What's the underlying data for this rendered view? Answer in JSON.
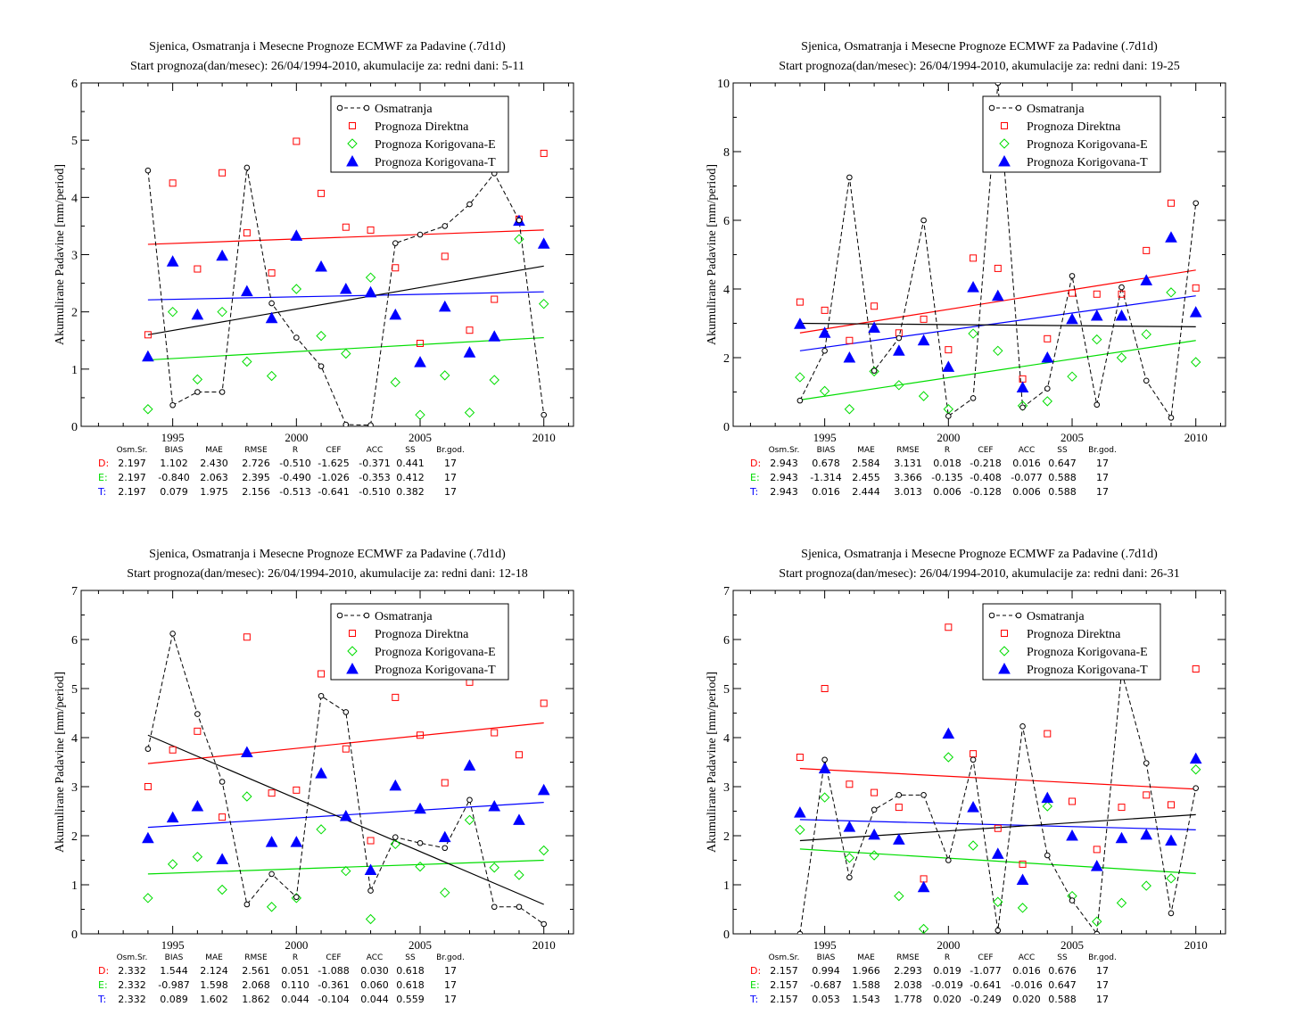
{
  "legend": {
    "obs": "Osmatranja",
    "direct": "Prognoza Direktna",
    "corrE": "Prognoza Korigovana-E",
    "corrT": "Prognoza Korigovana-T"
  },
  "stats_headers": [
    "Osm.Sr.",
    "BIAS",
    "MAE",
    "RMSE",
    "R",
    "CEF",
    "ACC",
    "SS",
    "Br.god."
  ],
  "colors": {
    "obs": "#000000",
    "direct": "#ff0000",
    "corrE": "#00dd00",
    "corrT": "#0000ff"
  },
  "chart_data": [
    {
      "type": "scatter",
      "title": "Sjenica, Osmatranja i Mesecne Prognoze ECMWF za Padavine (.7d1d)",
      "subtitle": "Start prognoza(dan/mesec): 26/04/1994-2010, akumulacije za: redni dani: 5-11",
      "ylabel": "Akumulirane Padavine [mm/period]",
      "xlim": [
        1991.3,
        2011.2
      ],
      "ylim": [
        0,
        6
      ],
      "xticks": [
        1995,
        2000,
        2005,
        2010
      ],
      "yticks": [
        0,
        1,
        2,
        3,
        4,
        5,
        6
      ],
      "x": [
        1994,
        1995,
        1996,
        1997,
        1998,
        1999,
        2000,
        2001,
        2002,
        2003,
        2004,
        2005,
        2006,
        2007,
        2008,
        2009,
        2010
      ],
      "obs": [
        4.47,
        0.37,
        0.6,
        0.6,
        4.52,
        2.15,
        1.55,
        1.05,
        0.03,
        0.02,
        3.2,
        3.35,
        3.5,
        3.88,
        4.42,
        3.6,
        0.2
      ],
      "direct": [
        1.6,
        4.25,
        2.75,
        4.43,
        3.38,
        2.68,
        4.98,
        4.07,
        3.48,
        3.43,
        2.77,
        1.45,
        2.97,
        1.68,
        2.22,
        3.62,
        4.77
      ],
      "corrE": [
        0.3,
        2.0,
        0.82,
        2.0,
        1.13,
        0.88,
        2.4,
        1.58,
        1.27,
        2.6,
        0.77,
        0.2,
        0.89,
        0.24,
        0.81,
        3.27,
        2.14
      ],
      "corrT": [
        1.22,
        2.88,
        1.95,
        2.98,
        2.36,
        1.89,
        3.33,
        2.79,
        2.4,
        2.34,
        1.95,
        1.12,
        2.09,
        1.29,
        1.57,
        3.59,
        3.19
      ],
      "trend": {
        "obs": [
          1.6,
          2.8
        ],
        "direct": [
          3.18,
          3.43
        ],
        "corrE": [
          1.16,
          1.55
        ],
        "corrT": [
          2.21,
          2.35
        ]
      },
      "stats": [
        {
          "label": "D:",
          "values": [
            "2.197",
            "1.102",
            "2.430",
            "2.726",
            "-0.510",
            "-1.625",
            "-0.371",
            "0.441",
            "17"
          ]
        },
        {
          "label": "E:",
          "values": [
            "2.197",
            "-0.840",
            "2.063",
            "2.395",
            "-0.490",
            "-1.026",
            "-0.353",
            "0.412",
            "17"
          ]
        },
        {
          "label": "T:",
          "values": [
            "2.197",
            "0.079",
            "1.975",
            "2.156",
            "-0.513",
            "-0.641",
            "-0.510",
            "0.382",
            "17"
          ]
        }
      ]
    },
    {
      "type": "scatter",
      "title": "Sjenica, Osmatranja i Mesecne Prognoze ECMWF za Padavine (.7d1d)",
      "subtitle": "Start prognoza(dan/mesec): 26/04/1994-2010, akumulacije za: redni dani: 19-25",
      "ylabel": "Akumulirane Padavine [mm/period]",
      "xlim": [
        1991.3,
        2011.2
      ],
      "ylim": [
        0,
        10
      ],
      "xticks": [
        1995,
        2000,
        2005,
        2010
      ],
      "yticks": [
        0,
        2,
        4,
        6,
        8,
        10
      ],
      "x": [
        1994,
        1995,
        1996,
        1997,
        1998,
        1999,
        2000,
        2001,
        2002,
        2003,
        2004,
        2005,
        2006,
        2007,
        2008,
        2009,
        2010
      ],
      "obs": [
        0.75,
        2.2,
        7.25,
        1.62,
        2.57,
        6.0,
        0.3,
        0.82,
        10.0,
        0.55,
        1.1,
        4.38,
        0.63,
        4.05,
        1.33,
        0.25,
        6.5
      ],
      "direct": [
        3.62,
        3.38,
        2.5,
        3.5,
        2.72,
        3.12,
        2.23,
        4.9,
        4.6,
        1.38,
        2.55,
        3.88,
        3.85,
        3.85,
        5.12,
        6.5,
        4.03
      ],
      "corrE": [
        1.43,
        1.03,
        0.5,
        1.6,
        1.2,
        0.88,
        0.5,
        2.7,
        2.2,
        0.6,
        0.73,
        1.45,
        2.53,
        2.0,
        2.68,
        3.9,
        1.87
      ],
      "corrT": [
        2.98,
        2.72,
        2.0,
        2.87,
        2.2,
        2.5,
        1.73,
        4.05,
        3.8,
        1.13,
        2.0,
        3.12,
        3.22,
        3.22,
        4.25,
        5.5,
        3.32
      ],
      "trend": {
        "obs": [
          3.0,
          2.9
        ],
        "direct": [
          2.72,
          4.55
        ],
        "corrE": [
          0.77,
          2.5
        ],
        "corrT": [
          2.2,
          3.8
        ]
      },
      "stats": [
        {
          "label": "D:",
          "values": [
            "2.943",
            "0.678",
            "2.584",
            "3.131",
            "0.018",
            "-0.218",
            "0.016",
            "0.647",
            "17"
          ]
        },
        {
          "label": "E:",
          "values": [
            "2.943",
            "-1.314",
            "2.455",
            "3.366",
            "-0.135",
            "-0.408",
            "-0.077",
            "0.588",
            "17"
          ]
        },
        {
          "label": "T:",
          "values": [
            "2.943",
            "0.016",
            "2.444",
            "3.013",
            "0.006",
            "-0.128",
            "0.006",
            "0.588",
            "17"
          ]
        }
      ]
    },
    {
      "type": "scatter",
      "title": "Sjenica, Osmatranja i Mesecne Prognoze ECMWF za Padavine (.7d1d)",
      "subtitle": "Start prognoza(dan/mesec): 26/04/1994-2010, akumulacije za: redni dani: 12-18",
      "ylabel": "Akumulirane Padavine [mm/period]",
      "xlim": [
        1991.3,
        2011.2
      ],
      "ylim": [
        0,
        7
      ],
      "xticks": [
        1995,
        2000,
        2005,
        2010
      ],
      "yticks": [
        0,
        1,
        2,
        3,
        4,
        5,
        6,
        7
      ],
      "x": [
        1994,
        1995,
        1996,
        1997,
        1998,
        1999,
        2000,
        2001,
        2002,
        2003,
        2004,
        2005,
        2006,
        2007,
        2008,
        2009,
        2010
      ],
      "obs": [
        3.77,
        6.12,
        4.48,
        3.1,
        0.6,
        1.22,
        0.75,
        4.85,
        4.52,
        0.88,
        1.97,
        1.85,
        1.75,
        2.73,
        0.55,
        0.55,
        0.2
      ],
      "direct": [
        3.0,
        3.75,
        4.13,
        2.38,
        6.05,
        2.87,
        2.93,
        5.3,
        3.77,
        1.9,
        4.82,
        4.05,
        3.08,
        5.13,
        4.1,
        3.65,
        4.7
      ],
      "corrE": [
        0.73,
        1.42,
        1.57,
        0.9,
        2.8,
        0.55,
        0.73,
        2.13,
        1.28,
        0.3,
        1.83,
        1.37,
        0.84,
        2.32,
        1.35,
        1.2,
        1.7
      ],
      "corrT": [
        1.95,
        2.37,
        2.6,
        1.52,
        3.7,
        1.87,
        1.87,
        3.27,
        2.4,
        1.3,
        3.02,
        2.55,
        1.97,
        3.43,
        2.6,
        2.32,
        2.93
      ],
      "trend": {
        "obs": [
          4.05,
          0.6
        ],
        "direct": [
          3.47,
          4.3
        ],
        "corrE": [
          1.22,
          1.5
        ],
        "corrT": [
          2.17,
          2.68
        ]
      },
      "stats": [
        {
          "label": "D:",
          "values": [
            "2.332",
            "1.544",
            "2.124",
            "2.561",
            "0.051",
            "-1.088",
            "0.030",
            "0.618",
            "17"
          ]
        },
        {
          "label": "E:",
          "values": [
            "2.332",
            "-0.987",
            "1.598",
            "2.068",
            "0.110",
            "-0.361",
            "0.060",
            "0.618",
            "17"
          ]
        },
        {
          "label": "T:",
          "values": [
            "2.332",
            "0.089",
            "1.602",
            "1.862",
            "0.044",
            "-0.104",
            "0.044",
            "0.559",
            "17"
          ]
        }
      ]
    },
    {
      "type": "scatter",
      "title": "Sjenica, Osmatranja i Mesecne Prognoze ECMWF za Padavine (.7d1d)",
      "subtitle": "Start prognoza(dan/mesec): 26/04/1994-2010, akumulacije za: redni dani: 26-31",
      "ylabel": "Akumulirane Padavine [mm/period]",
      "xlim": [
        1991.3,
        2011.2
      ],
      "ylim": [
        0,
        7
      ],
      "xticks": [
        1995,
        2000,
        2005,
        2010
      ],
      "yticks": [
        0,
        1,
        2,
        3,
        4,
        5,
        6,
        7
      ],
      "x": [
        1994,
        1995,
        1996,
        1997,
        1998,
        1999,
        2000,
        2001,
        2002,
        2003,
        2004,
        2005,
        2006,
        2007,
        2008,
        2009,
        2010
      ],
      "obs": [
        0.0,
        3.55,
        1.15,
        2.53,
        2.83,
        2.83,
        1.5,
        3.55,
        0.07,
        4.23,
        1.6,
        0.68,
        0.0,
        5.35,
        3.48,
        0.42,
        2.97
      ],
      "direct": [
        3.6,
        5.0,
        3.05,
        2.88,
        2.58,
        1.12,
        6.25,
        3.67,
        2.15,
        1.42,
        4.08,
        2.7,
        1.72,
        2.58,
        2.83,
        2.63,
        5.4
      ],
      "corrE": [
        2.12,
        2.78,
        1.55,
        1.6,
        0.77,
        0.1,
        3.6,
        1.8,
        0.65,
        0.53,
        2.6,
        0.77,
        0.25,
        0.63,
        0.98,
        1.13,
        3.35
      ],
      "corrT": [
        2.47,
        3.37,
        2.18,
        2.02,
        1.92,
        0.95,
        4.08,
        2.58,
        1.63,
        1.1,
        2.77,
        2.0,
        1.38,
        1.95,
        2.02,
        1.9,
        3.57
      ],
      "trend": {
        "obs": [
          1.9,
          2.43
        ],
        "direct": [
          3.37,
          2.95
        ],
        "corrE": [
          1.73,
          1.23
        ],
        "corrT": [
          2.33,
          2.12
        ]
      },
      "stats": [
        {
          "label": "D:",
          "values": [
            "2.157",
            "0.994",
            "1.966",
            "2.293",
            "0.019",
            "-1.077",
            "0.016",
            "0.676",
            "17"
          ]
        },
        {
          "label": "E:",
          "values": [
            "2.157",
            "-0.687",
            "1.588",
            "2.038",
            "-0.019",
            "-0.641",
            "-0.016",
            "0.647",
            "17"
          ]
        },
        {
          "label": "T:",
          "values": [
            "2.157",
            "0.053",
            "1.543",
            "1.778",
            "0.020",
            "-0.249",
            "0.020",
            "0.588",
            "17"
          ]
        }
      ]
    }
  ]
}
